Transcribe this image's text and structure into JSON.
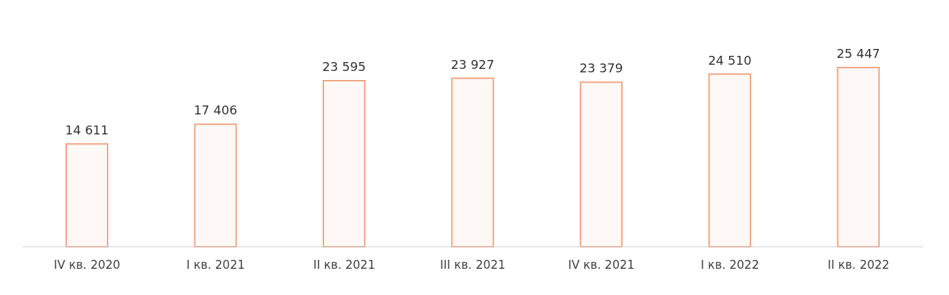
{
  "chart_data": {
    "type": "bar",
    "categories": [
      "IV кв. 2020",
      "I кв. 2021",
      "II кв. 2021",
      "III кв. 2021",
      "IV кв. 2021",
      "I кв. 2022",
      "II кв. 2022"
    ],
    "values": [
      14611,
      17406,
      23595,
      23927,
      23379,
      24510,
      25447
    ],
    "value_labels": [
      "14 611",
      "17 406",
      "23 595",
      "23 927",
      "23 379",
      "24 510",
      "25 447"
    ],
    "color": "#f2a27e"
  }
}
